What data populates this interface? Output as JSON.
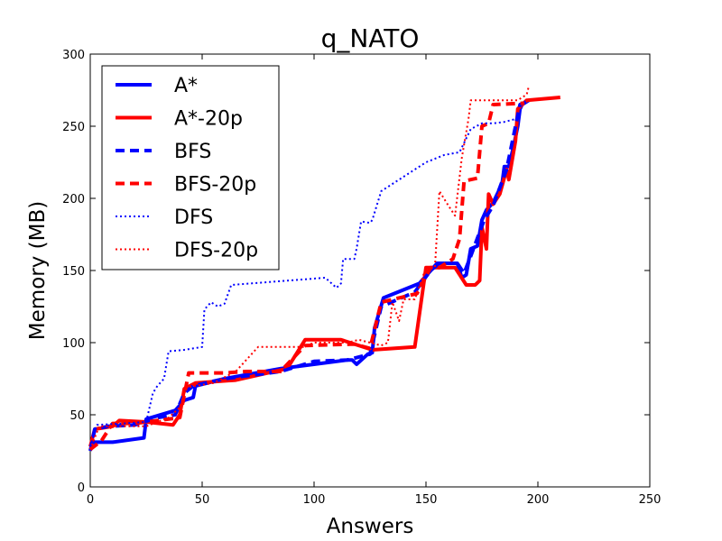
{
  "chart_data": {
    "type": "line",
    "title": "q_NATO",
    "xlabel": "Answers",
    "ylabel": "Memory (MB)",
    "xlim": [
      0,
      250
    ],
    "ylim": [
      0,
      300
    ],
    "xticks": [
      0,
      50,
      100,
      150,
      200,
      250
    ],
    "yticks": [
      0,
      50,
      100,
      150,
      200,
      250,
      300
    ],
    "grid": false,
    "legend_position": "top-left",
    "series": [
      {
        "name": "A*",
        "color": "#0000ff",
        "dash": "solid",
        "width": "thick",
        "points": [
          [
            0,
            30
          ],
          [
            2,
            31
          ],
          [
            10,
            31
          ],
          [
            24,
            34
          ],
          [
            25,
            47
          ],
          [
            38,
            53
          ],
          [
            42,
            60
          ],
          [
            46,
            62
          ],
          [
            47,
            70
          ],
          [
            60,
            75
          ],
          [
            85,
            82
          ],
          [
            100,
            85
          ],
          [
            115,
            88
          ],
          [
            117,
            88
          ],
          [
            119,
            85
          ],
          [
            124,
            92
          ],
          [
            126,
            93
          ],
          [
            127,
            110
          ],
          [
            131,
            131
          ],
          [
            147,
            141
          ],
          [
            151,
            148
          ],
          [
            155,
            155
          ],
          [
            164,
            155
          ],
          [
            166,
            145
          ],
          [
            168,
            147
          ],
          [
            170,
            165
          ],
          [
            173,
            167
          ],
          [
            175,
            185
          ],
          [
            177,
            192
          ],
          [
            180,
            197
          ],
          [
            184,
            210
          ],
          [
            185,
            222
          ],
          [
            187,
            222
          ],
          [
            189,
            235
          ],
          [
            191,
            250
          ],
          [
            192,
            262
          ],
          [
            193,
            265
          ],
          [
            196,
            268
          ]
        ]
      },
      {
        "name": "A*-20p",
        "color": "#ff0000",
        "dash": "solid",
        "width": "thick",
        "points": [
          [
            0,
            28
          ],
          [
            2,
            40
          ],
          [
            10,
            42
          ],
          [
            13,
            46
          ],
          [
            25,
            45
          ],
          [
            37,
            43
          ],
          [
            40,
            50
          ],
          [
            42,
            68
          ],
          [
            47,
            72
          ],
          [
            65,
            74
          ],
          [
            88,
            82
          ],
          [
            96,
            102
          ],
          [
            112,
            102
          ],
          [
            126,
            95
          ],
          [
            145,
            97
          ],
          [
            150,
            152
          ],
          [
            163,
            152
          ],
          [
            168,
            140
          ],
          [
            172,
            140
          ],
          [
            174,
            143
          ],
          [
            175,
            180
          ],
          [
            177,
            165
          ],
          [
            178,
            203
          ],
          [
            180,
            196
          ],
          [
            183,
            203
          ],
          [
            186,
            220
          ],
          [
            187,
            213
          ],
          [
            190,
            240
          ],
          [
            191,
            262
          ],
          [
            195,
            268
          ],
          [
            210,
            270
          ]
        ]
      },
      {
        "name": "BFS",
        "color": "#0000ff",
        "dash": "dashed",
        "width": "thick",
        "points": [
          [
            0,
            25
          ],
          [
            2,
            40
          ],
          [
            8,
            42
          ],
          [
            20,
            43
          ],
          [
            30,
            48
          ],
          [
            38,
            50
          ],
          [
            42,
            65
          ],
          [
            46,
            70
          ],
          [
            60,
            75
          ],
          [
            85,
            80
          ],
          [
            100,
            87
          ],
          [
            115,
            88
          ],
          [
            125,
            92
          ],
          [
            130,
            125
          ],
          [
            145,
            135
          ],
          [
            152,
            150
          ],
          [
            156,
            155
          ],
          [
            164,
            155
          ],
          [
            167,
            148
          ],
          [
            170,
            160
          ],
          [
            176,
            185
          ],
          [
            180,
            195
          ],
          [
            186,
            220
          ],
          [
            192,
            265
          ],
          [
            195,
            267
          ]
        ]
      },
      {
        "name": "BFS-20p",
        "color": "#ff0000",
        "dash": "dashed",
        "width": "thick",
        "points": [
          [
            0,
            26
          ],
          [
            5,
            32
          ],
          [
            10,
            44
          ],
          [
            20,
            44
          ],
          [
            30,
            46
          ],
          [
            40,
            48
          ],
          [
            44,
            79
          ],
          [
            60,
            79
          ],
          [
            70,
            80
          ],
          [
            85,
            80
          ],
          [
            96,
            98
          ],
          [
            118,
            99
          ],
          [
            125,
            96
          ],
          [
            130,
            128
          ],
          [
            146,
            134
          ],
          [
            152,
            152
          ],
          [
            156,
            152
          ],
          [
            162,
            158
          ],
          [
            165,
            172
          ],
          [
            167,
            212
          ],
          [
            170,
            213
          ],
          [
            173,
            214
          ],
          [
            175,
            250
          ],
          [
            178,
            252
          ],
          [
            180,
            265
          ],
          [
            194,
            266
          ]
        ]
      },
      {
        "name": "DFS",
        "color": "#0000ff",
        "dash": "dotted",
        "width": "thin",
        "points": [
          [
            0,
            28
          ],
          [
            3,
            43
          ],
          [
            15,
            44
          ],
          [
            25,
            45
          ],
          [
            28,
            65
          ],
          [
            30,
            70
          ],
          [
            33,
            75
          ],
          [
            35,
            94
          ],
          [
            42,
            95
          ],
          [
            50,
            97
          ],
          [
            51,
            123
          ],
          [
            54,
            128
          ],
          [
            57,
            125
          ],
          [
            60,
            127
          ],
          [
            63,
            140
          ],
          [
            80,
            142
          ],
          [
            105,
            145
          ],
          [
            110,
            138
          ],
          [
            112,
            141
          ],
          [
            113,
            158
          ],
          [
            118,
            158
          ],
          [
            119,
            165
          ],
          [
            121,
            184
          ],
          [
            125,
            183
          ],
          [
            126,
            185
          ],
          [
            130,
            205
          ],
          [
            140,
            215
          ],
          [
            150,
            225
          ],
          [
            158,
            230
          ],
          [
            165,
            232
          ],
          [
            170,
            248
          ],
          [
            175,
            252
          ],
          [
            180,
            252
          ],
          [
            185,
            253
          ],
          [
            190,
            255
          ]
        ]
      },
      {
        "name": "DFS-20p",
        "color": "#ff0000",
        "dash": "dotted",
        "width": "thin",
        "points": [
          [
            0,
            26
          ],
          [
            4,
            42
          ],
          [
            15,
            42
          ],
          [
            25,
            42
          ],
          [
            35,
            48
          ],
          [
            40,
            55
          ],
          [
            43,
            69
          ],
          [
            55,
            72
          ],
          [
            65,
            80
          ],
          [
            75,
            97
          ],
          [
            95,
            97
          ],
          [
            100,
            100
          ],
          [
            115,
            100
          ],
          [
            120,
            102
          ],
          [
            130,
            98
          ],
          [
            133,
            100
          ],
          [
            135,
            128
          ],
          [
            138,
            115
          ],
          [
            140,
            130
          ],
          [
            145,
            130
          ],
          [
            150,
            152
          ],
          [
            154,
            152
          ],
          [
            156,
            205
          ],
          [
            160,
            195
          ],
          [
            163,
            188
          ],
          [
            166,
            228
          ],
          [
            169,
            255
          ],
          [
            170,
            268
          ],
          [
            185,
            268
          ],
          [
            191,
            268
          ],
          [
            195,
            272
          ],
          [
            196,
            278
          ]
        ]
      }
    ]
  }
}
